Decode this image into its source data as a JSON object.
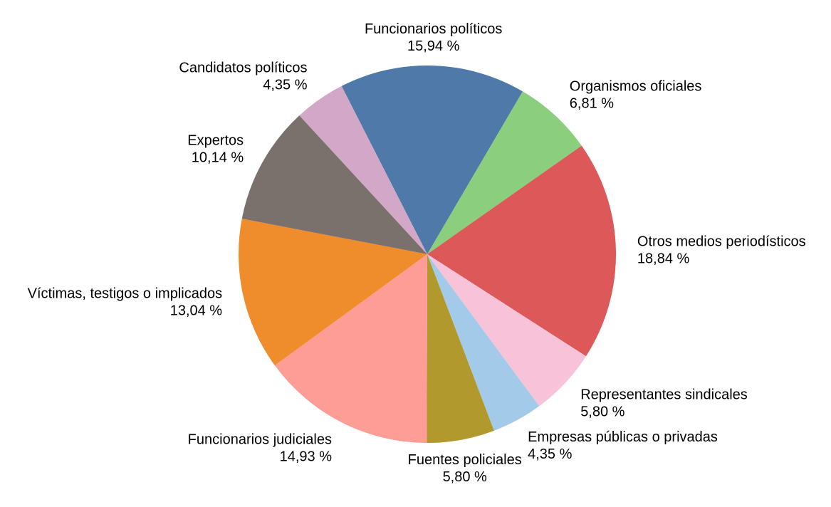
{
  "chart_data": {
    "type": "pie",
    "title": "",
    "legend": "none",
    "background_color": "#ffffff",
    "label_color": "#000000",
    "start_angle_deg": 117,
    "direction": "clockwise",
    "value_suffix": "%",
    "decimal_separator": ",",
    "slices": [
      {
        "label": "Funcionarios políticos",
        "value": 15.94,
        "percent_label": "15,94 %",
        "color": "#4e79a8"
      },
      {
        "label": "Organismos oficiales",
        "value": 6.81,
        "percent_label": "6,81 %",
        "color": "#8ace7e"
      },
      {
        "label": "Otros medios periodísticos",
        "value": 18.84,
        "percent_label": "18,84 %",
        "color": "#dd5858"
      },
      {
        "label": "Representantes sindicales",
        "value": 5.8,
        "percent_label": "5,80 %",
        "color": "#f8c3d8"
      },
      {
        "label": "Empresas públicas o privadas",
        "value": 4.35,
        "percent_label": "4,35 %",
        "color": "#a3cbe9"
      },
      {
        "label": "Fuentes policiales",
        "value": 5.8,
        "percent_label": "5,80 %",
        "color": "#b2992e"
      },
      {
        "label": "Funcionarios judiciales",
        "value": 14.93,
        "percent_label": "14,93 %",
        "color": "#fe9c96"
      },
      {
        "label": "Víctimas, testigos o implicados",
        "value": 13.04,
        "percent_label": "13,04 %",
        "color": "#ef8d2d"
      },
      {
        "label": "Expertos",
        "value": 10.14,
        "percent_label": "10,14 %",
        "color": "#7a716c"
      },
      {
        "label": "Candidatos políticos",
        "value": 4.35,
        "percent_label": "4,35 %",
        "color": "#d2a7c8"
      }
    ]
  }
}
